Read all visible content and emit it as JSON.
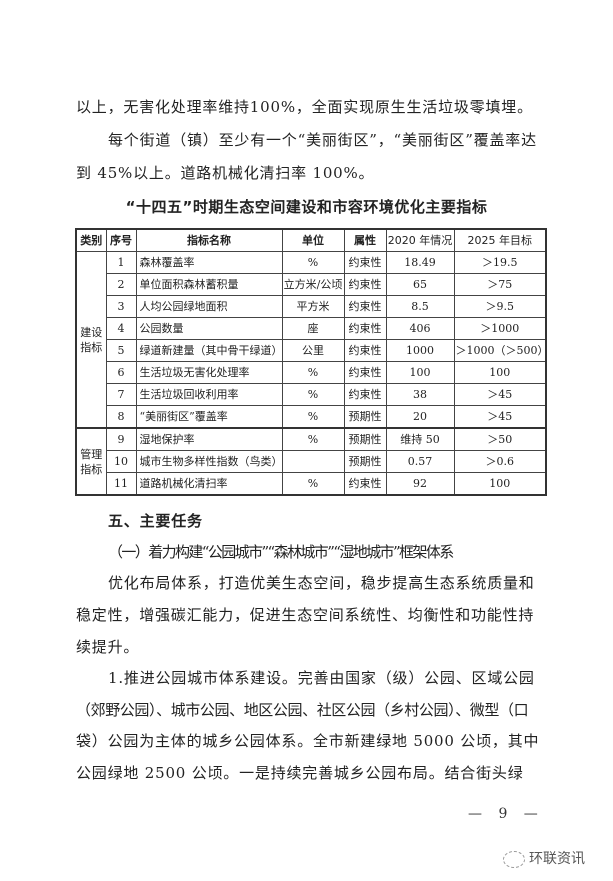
{
  "intro_lines": [
    "以上，无害化处理率维持100%，全面实现原生生活垃圾零填埋。",
    "每个街道（镇）至少有一个“美丽街区”，“美丽街区”覆盖率达",
    "到 45%以上。道路机械化清扫率 100%。"
  ],
  "table_title": "“十四五”时期生态空间建设和市容环境优化主要指标",
  "table": {
    "headers": [
      "类别",
      "序号",
      "指标名称",
      "单位",
      "属性",
      "2020 年情况",
      "2025 年目标"
    ],
    "groups": [
      {
        "label": "建设指标",
        "rows": 8
      },
      {
        "label": "管理指标",
        "rows": 3
      }
    ],
    "rows": [
      [
        "1",
        "森林覆盖率",
        "%",
        "约束性",
        "18.49",
        "＞19.5"
      ],
      [
        "2",
        "单位面积森林蓄积量",
        "立方米/公顷",
        "约束性",
        "65",
        "＞75"
      ],
      [
        "3",
        "人均公园绿地面积",
        "平方米",
        "约束性",
        "8.5",
        "＞9.5"
      ],
      [
        "4",
        "公园数量",
        "座",
        "约束性",
        "406",
        "＞1000"
      ],
      [
        "5",
        "绿道新建量（其中骨干绿道）",
        "公里",
        "约束性",
        "1000",
        "＞1000（＞500）"
      ],
      [
        "6",
        "生活垃圾无害化处理率",
        "%",
        "约束性",
        "100",
        "100"
      ],
      [
        "7",
        "生活垃圾回收利用率",
        "%",
        "约束性",
        "38",
        "＞45"
      ],
      [
        "8",
        "“美丽街区”覆盖率",
        "%",
        "预期性",
        "20",
        "＞45"
      ],
      [
        "9",
        "湿地保护率",
        "%",
        "预期性",
        "维持 50",
        "＞50"
      ],
      [
        "10",
        "城市生物多样性指数（鸟类）",
        "",
        "预期性",
        "0.57",
        "＞0.6"
      ],
      [
        "11",
        "道路机械化清扫率",
        "%",
        "约束性",
        "92",
        "100"
      ]
    ]
  },
  "section_heading": "五、主要任务",
  "sub_heading": "（一）着力构建“公园城市”“森林城市”“湿地城市”框架体系",
  "body_lines": [
    "优化布局体系，打造优美生态空间，稳步提高生态系统质量和",
    "稳定性，增强碳汇能力，促进生态空间系统性、均衡性和功能性持",
    "续提升。",
    "1.推进公园城市体系建设。完善由国家（级）公园、区域公园",
    "（郊野公园）、城市公园、地区公园、社区公园（乡村公园）、微型（口",
    "袋）公园为主体的城乡公园体系。全市新建绿地 5000 公顷，其中",
    "公园绿地 2500 公顷。一是持续完善城乡公园布局。结合街头绿"
  ],
  "page_number": "— 9 —",
  "watermark": "环联资讯"
}
